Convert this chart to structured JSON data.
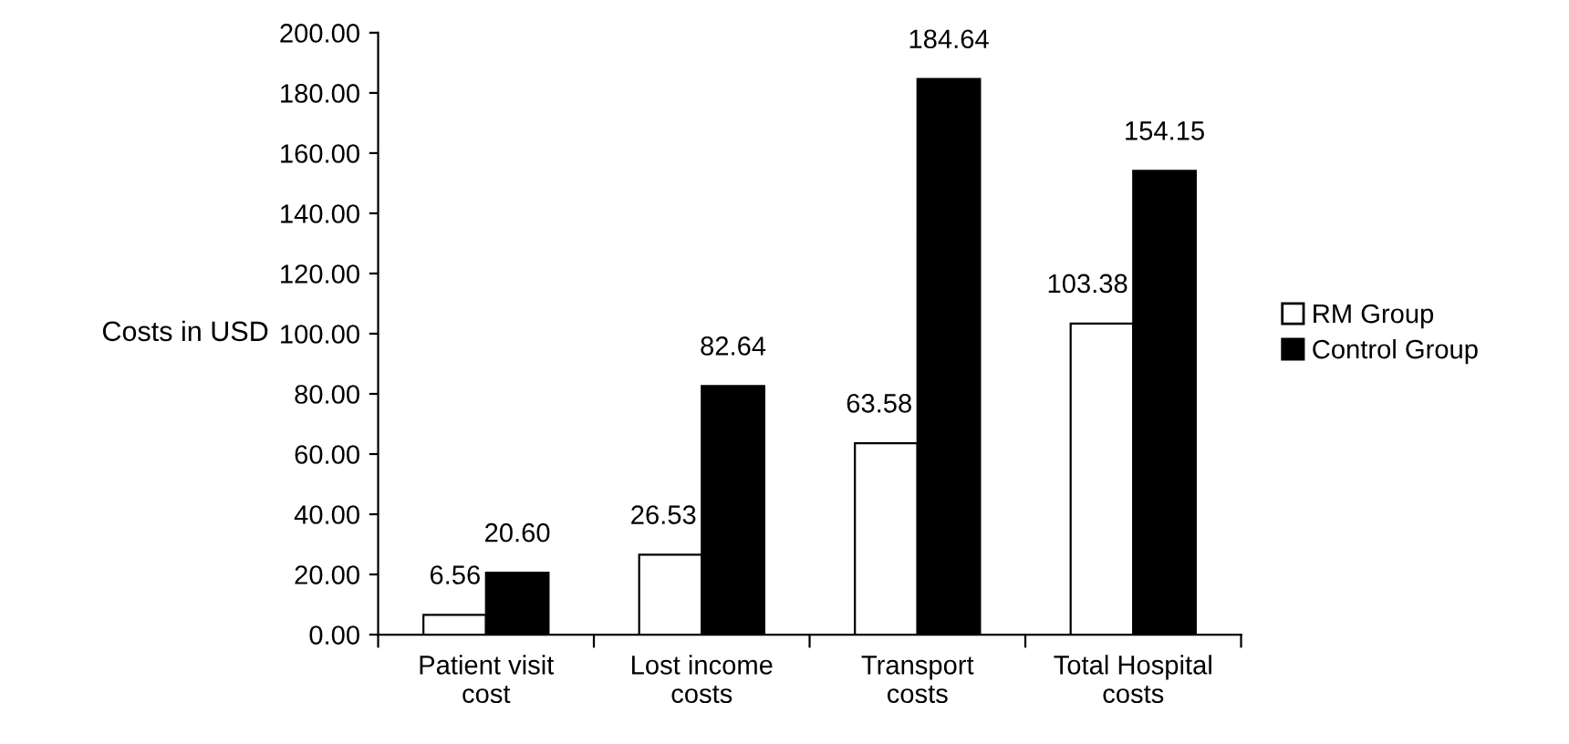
{
  "chart_data": {
    "type": "bar",
    "ylabel": "Costs in USD",
    "categories": [
      "Patient visit\ncost",
      "Lost income\ncosts",
      "Transport\ncosts",
      "Total Hospital\ncosts"
    ],
    "series": [
      {
        "name": "RM Group",
        "color": "#ffffff",
        "values": [
          6.56,
          26.53,
          63.58,
          103.38
        ],
        "value_labels": [
          "6.56",
          "26.53",
          "63.58",
          "103.38"
        ]
      },
      {
        "name": "Control Group",
        "color": "#000000",
        "values": [
          20.6,
          82.64,
          184.64,
          154.15
        ],
        "value_labels": [
          "20.60",
          "82.64",
          "184.64",
          "154.15"
        ]
      }
    ],
    "ylim": [
      0,
      200
    ],
    "yticks": [
      {
        "value": 0,
        "label": "0.00"
      },
      {
        "value": 20,
        "label": "20.00"
      },
      {
        "value": 40,
        "label": "40.00"
      },
      {
        "value": 60,
        "label": "60.00"
      },
      {
        "value": 80,
        "label": "80.00"
      },
      {
        "value": 100,
        "label": "100.00"
      },
      {
        "value": 120,
        "label": "120.00"
      },
      {
        "value": 140,
        "label": "140.00"
      },
      {
        "value": 160,
        "label": "160.00"
      },
      {
        "value": 180,
        "label": "180.00"
      },
      {
        "value": 200,
        "label": "200.00"
      }
    ],
    "grid": false,
    "legend": "right"
  }
}
